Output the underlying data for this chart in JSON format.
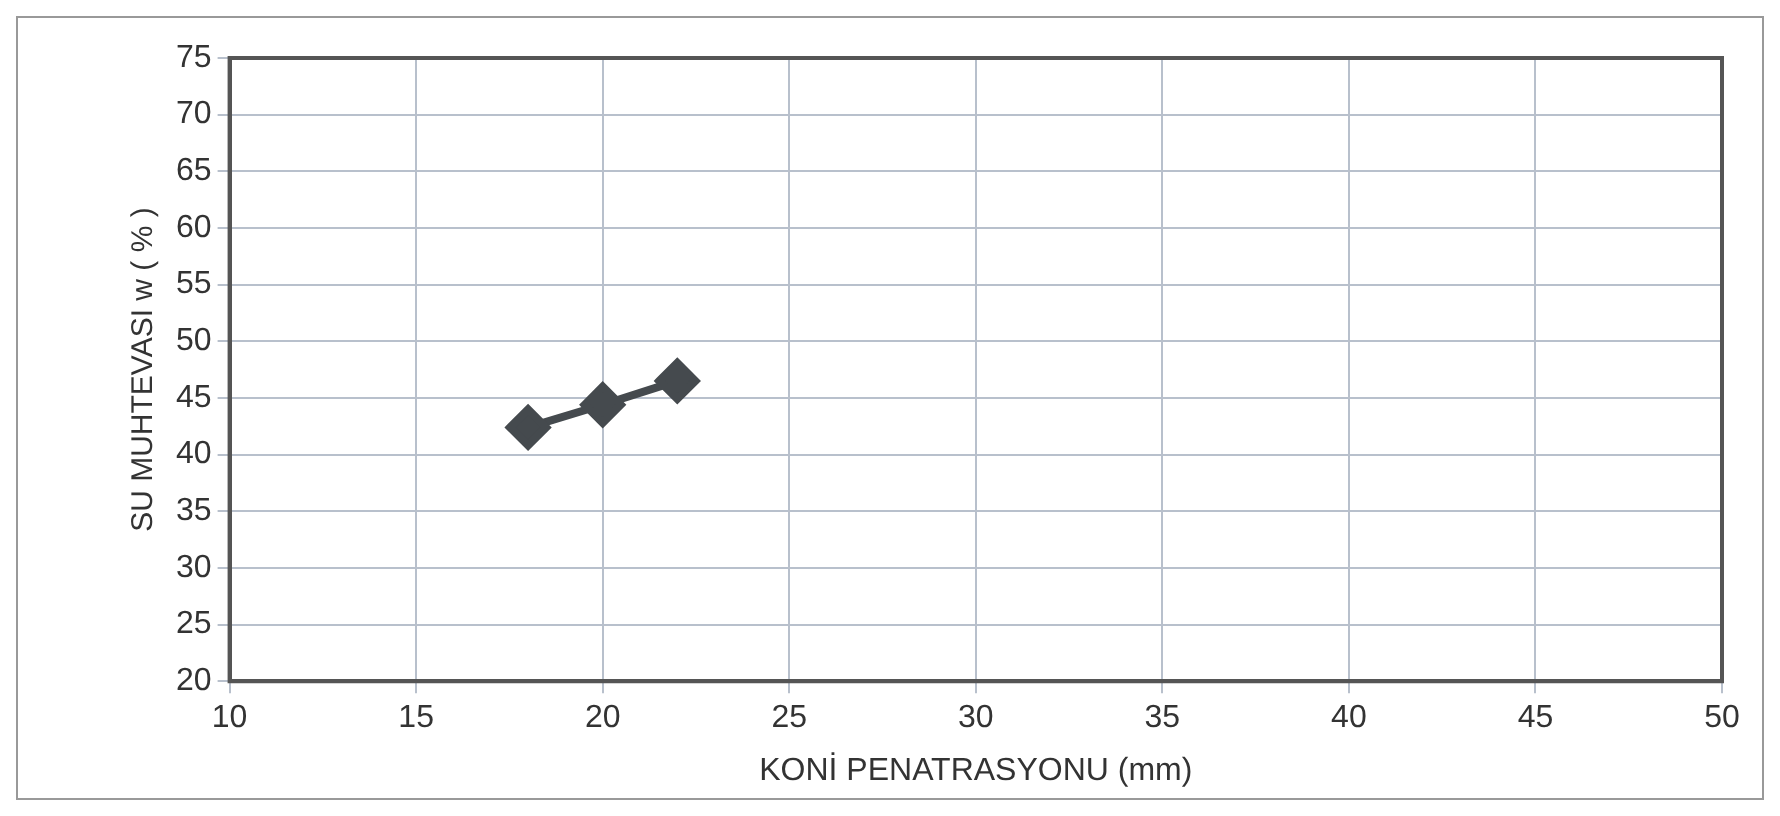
{
  "chart_data": {
    "type": "line",
    "xlabel": "KONİ PENATRASYONU (mm)",
    "ylabel": "SU MUHTEVASI w ( % )",
    "series": [
      {
        "x": [
          18,
          20,
          22
        ],
        "values": [
          42.4,
          44.4,
          46.5
        ],
        "color": "#454a4e"
      }
    ],
    "xlim": [
      10,
      50
    ],
    "xticks": [
      10,
      15,
      20,
      25,
      30,
      35,
      40,
      45,
      50
    ],
    "ylim": [
      20,
      75
    ],
    "yticks": [
      20,
      25,
      30,
      35,
      40,
      45,
      50,
      55,
      60,
      65,
      70,
      75
    ],
    "grid": true,
    "marker": "diamond",
    "line_style": "solid",
    "legend": false
  }
}
